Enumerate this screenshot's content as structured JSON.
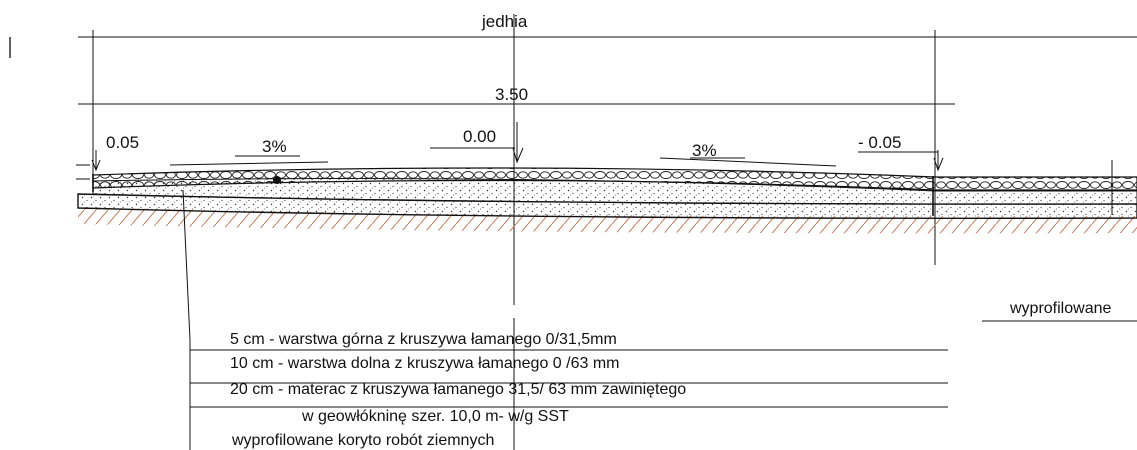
{
  "dimensions": {
    "top_label": "jedhia",
    "width_label": "3.50"
  },
  "levels": {
    "left": "0.05",
    "center": "0.00",
    "right": "- 0.05"
  },
  "slopes": {
    "left": "3%",
    "right": "3%"
  },
  "side_note": "wyprofilowane",
  "layers": [
    {
      "text": "5 cm -   warstwa górna  z kruszywa łamanego 0/31,5mm"
    },
    {
      "text": "10 cm - warstwa dolna z kruszywa łamanego 0 /63 mm"
    },
    {
      "text": "20 cm - materac z kruszywa  łamanego  31,5/ 63 mm zawiniętego"
    },
    {
      "text": "w  geowłókninę  szer. 10,0 m- w/g SST"
    },
    {
      "text": "wyprofilowane  koryto robót ziemnych"
    }
  ],
  "colors": {
    "line": "#111111",
    "ground_hatch": "#c77a55"
  }
}
